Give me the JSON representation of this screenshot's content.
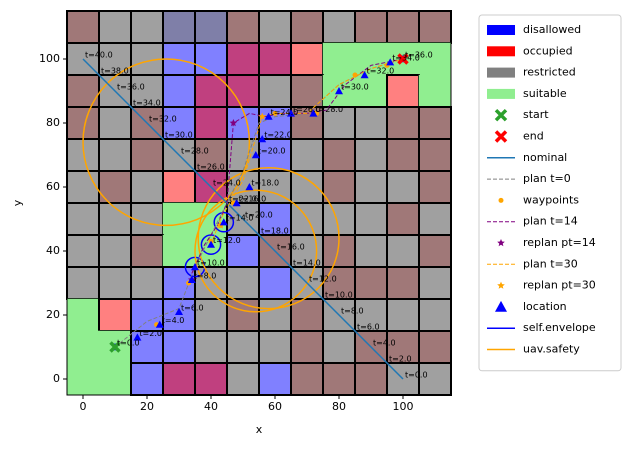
{
  "chart_data": {
    "type": "mission-map",
    "x_label": "x",
    "y_label": "y",
    "xlim": [
      -5,
      115
    ],
    "ylim": [
      -5,
      115
    ],
    "xticks": [
      0,
      20,
      40,
      60,
      80,
      100
    ],
    "yticks": [
      0,
      20,
      40,
      60,
      80,
      100
    ],
    "cell_colors": [
      "#a0a0a0",
      "#a07878",
      "#8080ff",
      "#7f7fa8",
      "#c0407f",
      "#ff8080",
      "#90ee90"
    ],
    "cell_rows": [
      [
        1,
        0,
        0,
        3,
        3,
        1,
        0,
        1,
        0,
        1,
        1,
        1
      ],
      [
        0,
        0,
        0,
        2,
        2,
        4,
        4,
        5,
        6,
        6,
        6,
        6
      ],
      [
        1,
        0,
        0,
        2,
        4,
        4,
        0,
        1,
        6,
        6,
        5,
        6
      ],
      [
        1,
        0,
        1,
        2,
        4,
        2,
        2,
        1,
        0,
        0,
        1,
        1
      ],
      [
        0,
        0,
        1,
        0,
        1,
        0,
        2,
        0,
        1,
        0,
        1,
        1
      ],
      [
        0,
        1,
        0,
        5,
        4,
        0,
        0,
        0,
        1,
        0,
        0,
        1
      ],
      [
        0,
        0,
        0,
        6,
        6,
        0,
        2,
        0,
        0,
        0,
        1,
        0
      ],
      [
        0,
        0,
        1,
        6,
        6,
        2,
        1,
        0,
        1,
        0,
        0,
        1
      ],
      [
        0,
        0,
        0,
        2,
        0,
        0,
        2,
        0,
        1,
        1,
        1,
        0
      ],
      [
        6,
        5,
        2,
        2,
        0,
        1,
        0,
        1,
        0,
        0,
        0,
        0
      ],
      [
        6,
        6,
        2,
        2,
        0,
        0,
        0,
        1,
        0,
        1,
        1,
        1
      ],
      [
        6,
        6,
        2,
        4,
        4,
        0,
        2,
        1,
        1,
        1,
        0,
        0
      ]
    ],
    "zones": [
      {
        "name": "disallowed",
        "color": "#0000ff"
      },
      {
        "name": "occupied",
        "color": "#ff0000"
      },
      {
        "name": "restricted",
        "color": "#808080"
      },
      {
        "name": "suitable",
        "color": "#90ee90"
      }
    ],
    "series": [
      {
        "name": "start",
        "style": "x-marker",
        "color": "#2ca02c",
        "x": [
          10
        ],
        "y": [
          10
        ]
      },
      {
        "name": "end",
        "style": "x-marker",
        "color": "#ff0000",
        "x": [
          100
        ],
        "y": [
          100
        ]
      },
      {
        "name": "nominal",
        "style": "line",
        "color": "#1f77b4",
        "x": [
          100,
          95,
          90,
          85,
          80,
          75,
          70,
          65,
          60,
          55,
          50,
          45,
          40,
          35,
          30,
          25,
          20,
          15,
          10,
          5,
          0
        ],
        "y": [
          0,
          5,
          10,
          15,
          20,
          25,
          30,
          35,
          40,
          45,
          50,
          55,
          60,
          65,
          70,
          75,
          80,
          85,
          90,
          95,
          100
        ],
        "point_labels": [
          "t=0.0",
          "t=2.0",
          "t=4.0",
          "t=6.0",
          "t=8.0",
          "t=10.0",
          "t=12.0",
          "t=14.0",
          "t=16.0",
          "t=18.0",
          "t=20.0",
          "t=22.0",
          "t=24.0",
          "t=26.0",
          "t=28.0",
          "t=30.0",
          "t=32.0",
          "t=34.0",
          "t=36.0",
          "t=38.0",
          "t=40.0"
        ]
      },
      {
        "name": "plan t=0",
        "style": "dashed",
        "color": "#808080",
        "x": [
          10,
          20,
          30,
          35,
          40,
          45,
          50,
          55,
          60,
          70,
          80,
          90,
          100
        ],
        "y": [
          10,
          18,
          22,
          35,
          45,
          55,
          65,
          80,
          82,
          83,
          92,
          97,
          100
        ]
      },
      {
        "name": "waypoints",
        "style": "dot",
        "color": "#ffa500",
        "x": [
          23,
          33,
          40,
          43,
          47,
          60,
          73,
          85,
          95
        ],
        "y": [
          17,
          30,
          43,
          48,
          55,
          83,
          83,
          95,
          98
        ]
      },
      {
        "name": "plan t=14",
        "style": "dashed",
        "color": "#800080",
        "x": [
          34,
          38,
          42,
          45,
          47,
          52,
          57,
          62,
          70,
          76,
          82,
          90,
          100
        ],
        "y": [
          33,
          42,
          48,
          55,
          80,
          83,
          82,
          83,
          83,
          84,
          92,
          98,
          100
        ]
      },
      {
        "name": "replan pt=14",
        "style": "star",
        "color": "#800080",
        "x": [
          47,
          34
        ],
        "y": [
          80,
          31
        ]
      },
      {
        "name": "plan t=30",
        "style": "dashed",
        "color": "#ffa500",
        "x": [
          40,
          43,
          47,
          50,
          56,
          60,
          70,
          80,
          90,
          100
        ],
        "y": [
          42,
          50,
          57,
          62,
          82,
          83,
          83,
          92,
          97,
          100
        ]
      },
      {
        "name": "replan pt=30",
        "style": "star",
        "color": "#ffa500",
        "x": [
          43,
          56
        ],
        "y": [
          48,
          82
        ]
      },
      {
        "name": "location",
        "style": "triangle",
        "color": "#0000ff",
        "x": [
          10,
          17,
          24,
          30,
          34,
          35,
          40,
          44,
          48,
          52,
          54,
          56,
          58,
          65,
          72,
          80,
          88,
          96,
          100
        ],
        "y": [
          10,
          13,
          17,
          21,
          31,
          35,
          42,
          49,
          55,
          60,
          70,
          75,
          82,
          83,
          83,
          90,
          95,
          99,
          100
        ],
        "point_labels": [
          "t=0.0",
          "t=2.0",
          "t=4.0",
          "t=6.0",
          "t=8.0",
          "t=10.0",
          "t=12.0",
          "t=14.0",
          "t=16.0",
          "t=18.0",
          "t=20.0",
          "t=22.0",
          "t=24.0",
          "t=26.0",
          "t=28.0",
          "t=30.0",
          "t=32.0",
          "t=34.0",
          "t=36.0"
        ]
      },
      {
        "name": "self.envelope",
        "style": "circle",
        "color": "#0000ff",
        "x": [
          35,
          40,
          44
        ],
        "y": [
          35,
          42,
          49
        ],
        "radius": [
          3,
          3,
          3
        ]
      },
      {
        "name": "uav.safety",
        "style": "circle",
        "color": "#ffa500",
        "x": [
          26,
          58,
          54
        ],
        "y": [
          74,
          44,
          40
        ],
        "radius": [
          26,
          22,
          19
        ]
      }
    ]
  }
}
